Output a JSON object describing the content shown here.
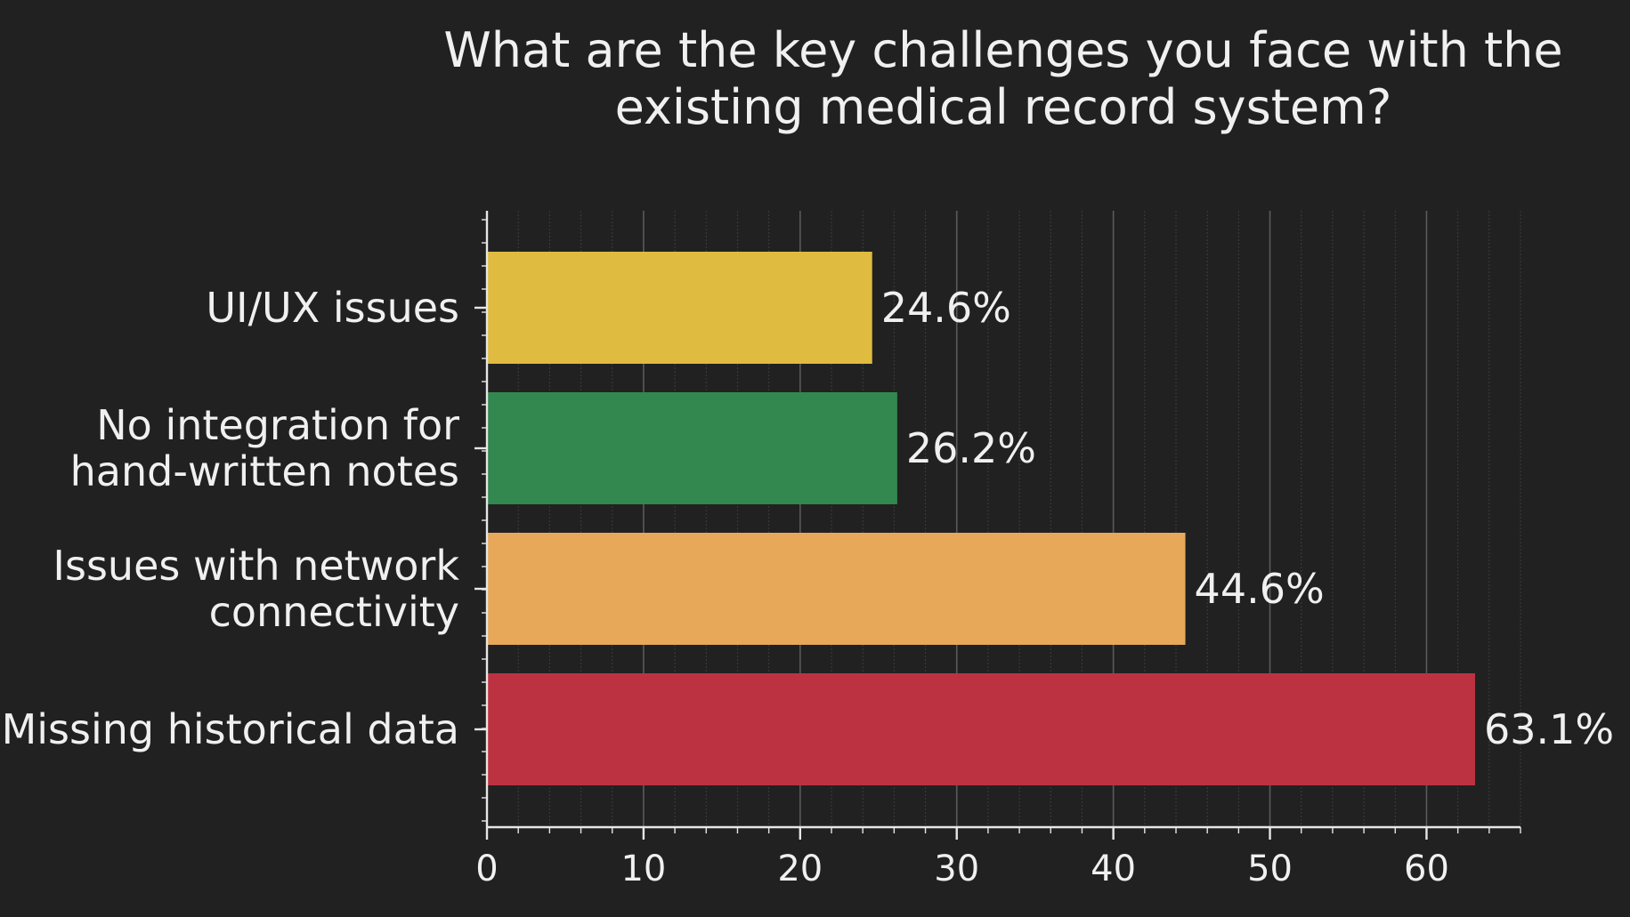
{
  "chart_data": {
    "type": "bar",
    "orientation": "horizontal",
    "title_lines": [
      "What are the key challenges you face with the",
      "existing medical record system?"
    ],
    "xlabel": "",
    "ylabel": "",
    "categories": [
      {
        "lines": [
          "UI/UX issues"
        ]
      },
      {
        "lines": [
          "No integration for",
          "hand-written notes"
        ]
      },
      {
        "lines": [
          "Issues with network",
          "connectivity"
        ]
      },
      {
        "lines": [
          "Missing historical data"
        ]
      }
    ],
    "values": [
      24.6,
      26.2,
      44.6,
      63.1
    ],
    "value_labels": [
      "24.6%",
      "26.2%",
      "44.6%",
      "63.1%"
    ],
    "colors": [
      "#dfbb3f",
      "#32884f",
      "#e7a85a",
      "#bd3240"
    ],
    "xlim": [
      0,
      66
    ],
    "xticks": [
      0,
      10,
      20,
      30,
      40,
      50,
      60
    ],
    "grid": true,
    "legend": "none"
  },
  "theme": {
    "background": "#212121",
    "text": "#f0f0f0",
    "axis": "#e6e6e6",
    "grid_major": "#5a5a5a",
    "grid_minor": "#3c3c3c"
  }
}
